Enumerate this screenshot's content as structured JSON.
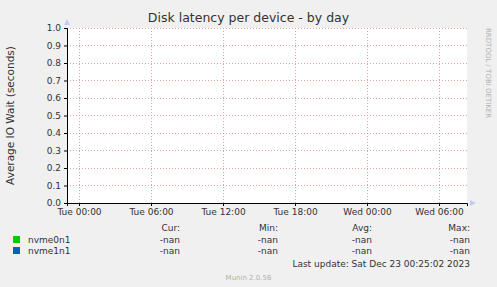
{
  "chart_data": {
    "type": "line",
    "title": "Disk latency per device - by day",
    "y_label": "Average IO Wait (seconds)",
    "x": [],
    "xlim": [
      -1,
      32.33
    ],
    "xticks": [
      {
        "value": 0,
        "label": "Tue 00:00"
      },
      {
        "value": 6,
        "label": "Tue 06:00"
      },
      {
        "value": 12,
        "label": "Tue 12:00"
      },
      {
        "value": 18,
        "label": "Tue 18:00"
      },
      {
        "value": 24,
        "label": "Wed 00:00"
      },
      {
        "value": 30,
        "label": "Wed 06:00"
      }
    ],
    "ylim": [
      0,
      1
    ],
    "yticks": [
      {
        "value": 0,
        "label": "0.0"
      },
      0.1,
      0.2,
      0.3,
      0.4,
      0.5,
      0.6,
      0.7,
      0.8,
      0.9,
      {
        "value": 1,
        "label": "1.0"
      }
    ],
    "grid": true,
    "legend_columns": [
      "Cur:",
      "Min:",
      "Avg:",
      "Max:"
    ],
    "series": [
      {
        "name": "nvme0n1",
        "color": "#00cc00",
        "values": [],
        "stats": [
          "-nan",
          "-nan",
          "-nan",
          "-nan"
        ]
      },
      {
        "name": "nvme1n1",
        "color": "#0066b3",
        "values": [],
        "stats": [
          "-nan",
          "-nan",
          "-nan",
          "-nan"
        ]
      }
    ],
    "last_update": "Last update: Sat Dec 23 00:25:02 2023",
    "footer": "Munin 2.0.56",
    "watermark": "RRDTOOL / TOBI OETIKER"
  }
}
